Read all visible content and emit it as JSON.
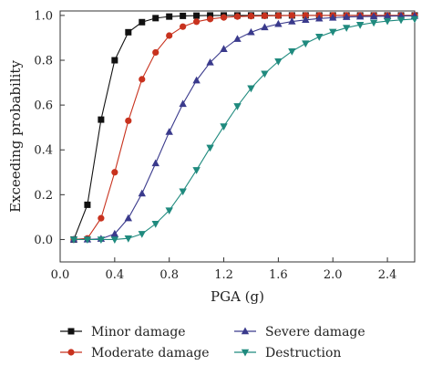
{
  "chart_data": {
    "type": "line",
    "title": "",
    "xlabel": "PGA (g)",
    "ylabel": "Exceeding probability",
    "xlim": [
      0.0,
      2.6
    ],
    "ylim": [
      -0.1,
      1.02
    ],
    "xticks": [
      0.0,
      0.4,
      0.8,
      1.2,
      1.6,
      2.0,
      2.4
    ],
    "xtick_labels": [
      "0.0",
      "0.4",
      "0.8",
      "1.2",
      "1.6",
      "2.0",
      "2.4"
    ],
    "yticks": [
      0.0,
      0.2,
      0.4,
      0.6,
      0.8,
      1.0
    ],
    "ytick_labels": [
      "0.0",
      "0.2",
      "0.4",
      "0.6",
      "0.8",
      "1.0"
    ],
    "grid": false,
    "legend_position": "bottom",
    "x": [
      0.1,
      0.2,
      0.3,
      0.4,
      0.5,
      0.6,
      0.7,
      0.8,
      0.9,
      1.0,
      1.1,
      1.2,
      1.3,
      1.4,
      1.5,
      1.6,
      1.7,
      1.8,
      1.9,
      2.0,
      2.1,
      2.2,
      2.3,
      2.4,
      2.5,
      2.6
    ],
    "series": [
      {
        "name": "Minor damage",
        "marker": "square",
        "color": "#111111",
        "values": [
          0.0,
          0.155,
          0.535,
          0.8,
          0.925,
          0.97,
          0.988,
          0.995,
          0.998,
          0.999,
          1.0,
          1.0,
          1.0,
          1.0,
          1.0,
          1.0,
          1.0,
          1.0,
          1.0,
          1.0,
          1.0,
          1.0,
          1.0,
          1.0,
          1.0,
          1.0
        ]
      },
      {
        "name": "Moderate damage",
        "marker": "circle",
        "color": "#c8321e",
        "values": [
          0.0,
          0.005,
          0.095,
          0.3,
          0.53,
          0.715,
          0.835,
          0.91,
          0.95,
          0.972,
          0.984,
          0.991,
          0.995,
          0.997,
          0.998,
          0.999,
          1.0,
          1.0,
          1.0,
          1.0,
          1.0,
          1.0,
          1.0,
          1.0,
          1.0,
          1.0
        ]
      },
      {
        "name": "Severe damage",
        "marker": "triangle-up",
        "color": "#3a3a8c",
        "values": [
          0.0,
          0.0,
          0.003,
          0.025,
          0.095,
          0.205,
          0.34,
          0.48,
          0.605,
          0.71,
          0.79,
          0.85,
          0.895,
          0.925,
          0.947,
          0.962,
          0.973,
          0.98,
          0.986,
          0.99,
          0.993,
          0.995,
          0.996,
          0.997,
          0.998,
          0.998
        ]
      },
      {
        "name": "Destruction",
        "marker": "triangle-down",
        "color": "#1f8a7e",
        "values": [
          0.0,
          0.0,
          0.0,
          0.0,
          0.005,
          0.025,
          0.07,
          0.13,
          0.215,
          0.31,
          0.41,
          0.505,
          0.595,
          0.675,
          0.74,
          0.795,
          0.84,
          0.875,
          0.905,
          0.927,
          0.945,
          0.958,
          0.968,
          0.975,
          0.98,
          0.984
        ]
      }
    ]
  }
}
